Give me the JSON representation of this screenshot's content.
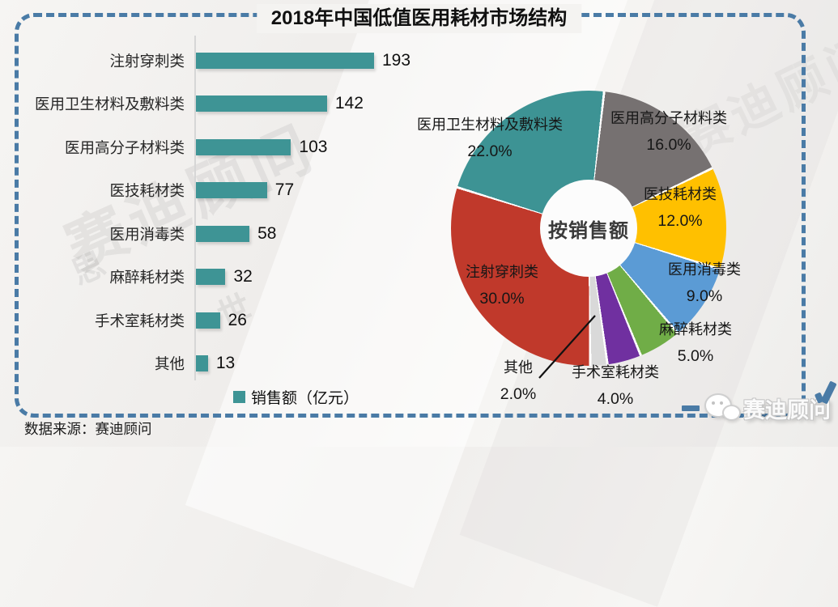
{
  "page": {
    "title": "2018年中国低值医用耗材市场结构",
    "source_note": "数据来源：赛迪顾问",
    "brand": {
      "logo_text": "赛迪顾问"
    },
    "watermark": {
      "main": "赛迪顾问",
      "glyphs": [
        "思",
        "世",
        "维"
      ]
    },
    "colors": {
      "border": "#4a7ba6",
      "bar": "#3e9495",
      "background": "#f4f3f1"
    }
  },
  "chart_data": [
    {
      "type": "bar",
      "orientation": "horizontal",
      "title": "2018年中国低值医用耗材市场结构",
      "categories": [
        "注射穿刺类",
        "医用卫生材料及敷料类",
        "医用高分子材料类",
        "医技耗材类",
        "医用消毒类",
        "麻醉耗材类",
        "手术室耗材类",
        "其他"
      ],
      "values": [
        193,
        142,
        103,
        77,
        58,
        32,
        26,
        13
      ],
      "legend": "销售额（亿元）",
      "bar_color": "#3e9495",
      "xlim": [
        0,
        193
      ],
      "grid": false,
      "value_labels": true
    },
    {
      "type": "pie",
      "donut": true,
      "center_label": "按销售额",
      "start_angle_deg": 6,
      "slice_gap_deg": 1,
      "slices": [
        {
          "label": "医用高分子材料类",
          "pct": 16.0,
          "color": "#767171"
        },
        {
          "label": "医技耗材类",
          "pct": 12.0,
          "color": "#ffc000"
        },
        {
          "label": "医用消毒类",
          "pct": 9.0,
          "color": "#5b9bd5"
        },
        {
          "label": "麻醉耗材类",
          "pct": 5.0,
          "color": "#70ad47"
        },
        {
          "label": "手术室耗材类",
          "pct": 4.0,
          "color": "#7030a0"
        },
        {
          "label": "其他",
          "pct": 2.0,
          "color": "#d9d9d9"
        },
        {
          "label": "注射穿刺类",
          "pct": 30.0,
          "color": "#c0392b"
        },
        {
          "label": "医用卫生材料及敷料类",
          "pct": 22.0,
          "color": "#3d9394"
        }
      ]
    }
  ]
}
